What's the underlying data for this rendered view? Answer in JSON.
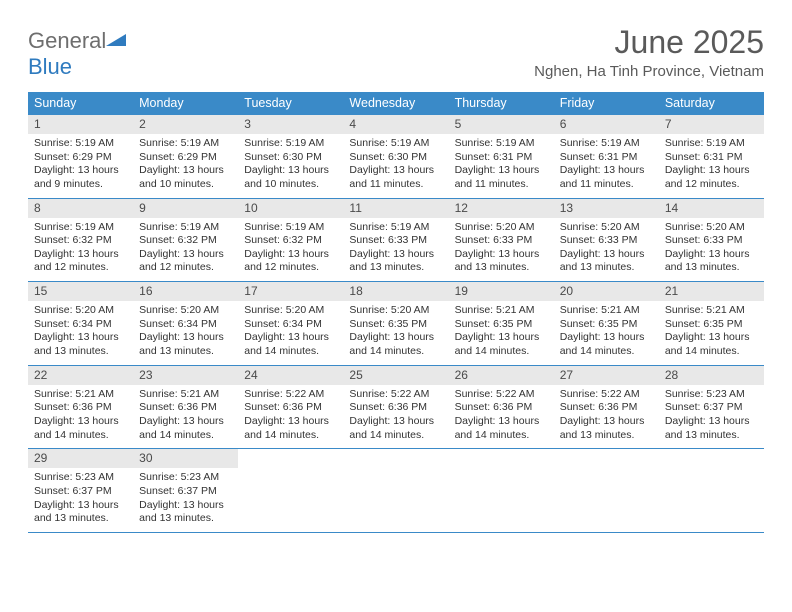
{
  "logo": {
    "general": "General",
    "blue": "Blue"
  },
  "title": "June 2025",
  "location": "Nghen, Ha Tinh Province, Vietnam",
  "day_headers": [
    "Sunday",
    "Monday",
    "Tuesday",
    "Wednesday",
    "Thursday",
    "Friday",
    "Saturday"
  ],
  "colors": {
    "header_bg": "#3a8ac8",
    "header_text": "#ffffff",
    "daynum_bg": "#e8e8e8",
    "daynum_text": "#4a4a4a",
    "body_text": "#333333",
    "rule": "#3a8ac8",
    "logo_gray": "#6e6e6e",
    "logo_blue": "#2f7bbf",
    "title_color": "#5a5a5a",
    "background": "#ffffff"
  },
  "fonts": {
    "family": "Arial",
    "month_title_size": 32,
    "location_size": 15,
    "day_header_size": 12.5,
    "day_number_size": 12,
    "day_content_size": 10.5
  },
  "days": [
    {
      "n": "1",
      "sunrise": "Sunrise: 5:19 AM",
      "sunset": "Sunset: 6:29 PM",
      "d1": "Daylight: 13 hours",
      "d2": "and 9 minutes."
    },
    {
      "n": "2",
      "sunrise": "Sunrise: 5:19 AM",
      "sunset": "Sunset: 6:29 PM",
      "d1": "Daylight: 13 hours",
      "d2": "and 10 minutes."
    },
    {
      "n": "3",
      "sunrise": "Sunrise: 5:19 AM",
      "sunset": "Sunset: 6:30 PM",
      "d1": "Daylight: 13 hours",
      "d2": "and 10 minutes."
    },
    {
      "n": "4",
      "sunrise": "Sunrise: 5:19 AM",
      "sunset": "Sunset: 6:30 PM",
      "d1": "Daylight: 13 hours",
      "d2": "and 11 minutes."
    },
    {
      "n": "5",
      "sunrise": "Sunrise: 5:19 AM",
      "sunset": "Sunset: 6:31 PM",
      "d1": "Daylight: 13 hours",
      "d2": "and 11 minutes."
    },
    {
      "n": "6",
      "sunrise": "Sunrise: 5:19 AM",
      "sunset": "Sunset: 6:31 PM",
      "d1": "Daylight: 13 hours",
      "d2": "and 11 minutes."
    },
    {
      "n": "7",
      "sunrise": "Sunrise: 5:19 AM",
      "sunset": "Sunset: 6:31 PM",
      "d1": "Daylight: 13 hours",
      "d2": "and 12 minutes."
    },
    {
      "n": "8",
      "sunrise": "Sunrise: 5:19 AM",
      "sunset": "Sunset: 6:32 PM",
      "d1": "Daylight: 13 hours",
      "d2": "and 12 minutes."
    },
    {
      "n": "9",
      "sunrise": "Sunrise: 5:19 AM",
      "sunset": "Sunset: 6:32 PM",
      "d1": "Daylight: 13 hours",
      "d2": "and 12 minutes."
    },
    {
      "n": "10",
      "sunrise": "Sunrise: 5:19 AM",
      "sunset": "Sunset: 6:32 PM",
      "d1": "Daylight: 13 hours",
      "d2": "and 12 minutes."
    },
    {
      "n": "11",
      "sunrise": "Sunrise: 5:19 AM",
      "sunset": "Sunset: 6:33 PM",
      "d1": "Daylight: 13 hours",
      "d2": "and 13 minutes."
    },
    {
      "n": "12",
      "sunrise": "Sunrise: 5:20 AM",
      "sunset": "Sunset: 6:33 PM",
      "d1": "Daylight: 13 hours",
      "d2": "and 13 minutes."
    },
    {
      "n": "13",
      "sunrise": "Sunrise: 5:20 AM",
      "sunset": "Sunset: 6:33 PM",
      "d1": "Daylight: 13 hours",
      "d2": "and 13 minutes."
    },
    {
      "n": "14",
      "sunrise": "Sunrise: 5:20 AM",
      "sunset": "Sunset: 6:33 PM",
      "d1": "Daylight: 13 hours",
      "d2": "and 13 minutes."
    },
    {
      "n": "15",
      "sunrise": "Sunrise: 5:20 AM",
      "sunset": "Sunset: 6:34 PM",
      "d1": "Daylight: 13 hours",
      "d2": "and 13 minutes."
    },
    {
      "n": "16",
      "sunrise": "Sunrise: 5:20 AM",
      "sunset": "Sunset: 6:34 PM",
      "d1": "Daylight: 13 hours",
      "d2": "and 13 minutes."
    },
    {
      "n": "17",
      "sunrise": "Sunrise: 5:20 AM",
      "sunset": "Sunset: 6:34 PM",
      "d1": "Daylight: 13 hours",
      "d2": "and 14 minutes."
    },
    {
      "n": "18",
      "sunrise": "Sunrise: 5:20 AM",
      "sunset": "Sunset: 6:35 PM",
      "d1": "Daylight: 13 hours",
      "d2": "and 14 minutes."
    },
    {
      "n": "19",
      "sunrise": "Sunrise: 5:21 AM",
      "sunset": "Sunset: 6:35 PM",
      "d1": "Daylight: 13 hours",
      "d2": "and 14 minutes."
    },
    {
      "n": "20",
      "sunrise": "Sunrise: 5:21 AM",
      "sunset": "Sunset: 6:35 PM",
      "d1": "Daylight: 13 hours",
      "d2": "and 14 minutes."
    },
    {
      "n": "21",
      "sunrise": "Sunrise: 5:21 AM",
      "sunset": "Sunset: 6:35 PM",
      "d1": "Daylight: 13 hours",
      "d2": "and 14 minutes."
    },
    {
      "n": "22",
      "sunrise": "Sunrise: 5:21 AM",
      "sunset": "Sunset: 6:36 PM",
      "d1": "Daylight: 13 hours",
      "d2": "and 14 minutes."
    },
    {
      "n": "23",
      "sunrise": "Sunrise: 5:21 AM",
      "sunset": "Sunset: 6:36 PM",
      "d1": "Daylight: 13 hours",
      "d2": "and 14 minutes."
    },
    {
      "n": "24",
      "sunrise": "Sunrise: 5:22 AM",
      "sunset": "Sunset: 6:36 PM",
      "d1": "Daylight: 13 hours",
      "d2": "and 14 minutes."
    },
    {
      "n": "25",
      "sunrise": "Sunrise: 5:22 AM",
      "sunset": "Sunset: 6:36 PM",
      "d1": "Daylight: 13 hours",
      "d2": "and 14 minutes."
    },
    {
      "n": "26",
      "sunrise": "Sunrise: 5:22 AM",
      "sunset": "Sunset: 6:36 PM",
      "d1": "Daylight: 13 hours",
      "d2": "and 14 minutes."
    },
    {
      "n": "27",
      "sunrise": "Sunrise: 5:22 AM",
      "sunset": "Sunset: 6:36 PM",
      "d1": "Daylight: 13 hours",
      "d2": "and 13 minutes."
    },
    {
      "n": "28",
      "sunrise": "Sunrise: 5:23 AM",
      "sunset": "Sunset: 6:37 PM",
      "d1": "Daylight: 13 hours",
      "d2": "and 13 minutes."
    },
    {
      "n": "29",
      "sunrise": "Sunrise: 5:23 AM",
      "sunset": "Sunset: 6:37 PM",
      "d1": "Daylight: 13 hours",
      "d2": "and 13 minutes."
    },
    {
      "n": "30",
      "sunrise": "Sunrise: 5:23 AM",
      "sunset": "Sunset: 6:37 PM",
      "d1": "Daylight: 13 hours",
      "d2": "and 13 minutes."
    }
  ]
}
